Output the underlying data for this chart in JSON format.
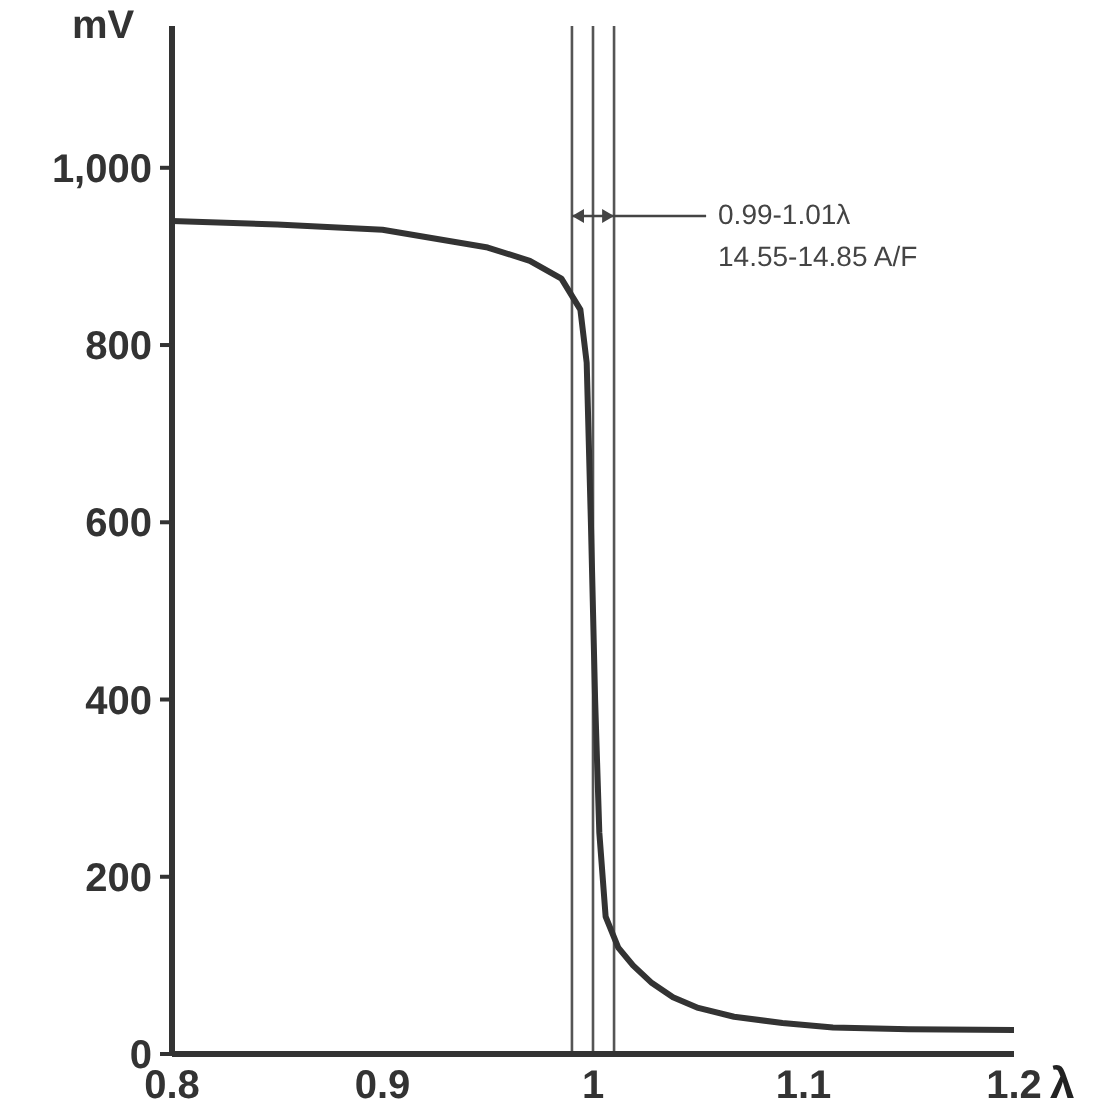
{
  "chart_data": {
    "type": "line",
    "xlabel": "λ",
    "ylabel": "mV",
    "x": [
      0.8,
      0.85,
      0.9,
      0.95,
      0.97,
      0.985,
      0.994,
      0.997,
      0.999,
      1.001,
      1.003,
      1.006,
      1.012,
      1.019,
      1.028,
      1.038,
      1.05,
      1.067,
      1.09,
      1.114,
      1.15,
      1.2
    ],
    "series": [
      {
        "color": "#333333",
        "values": [
          940,
          936,
          930,
          910,
          895,
          875,
          840,
          780,
          600,
          400,
          250,
          155,
          120,
          100,
          80,
          64,
          52,
          42,
          35,
          30,
          28,
          27
        ]
      }
    ],
    "xlim": [
      0.8,
      1.2
    ],
    "xticks": [
      0.8,
      0.9,
      1,
      1.1,
      1.2
    ],
    "ylim": [
      0,
      1160
    ],
    "yticks": [
      0,
      200,
      400,
      600,
      800,
      {
        "value": 1000,
        "label": "1,000"
      }
    ],
    "ref_lines": [
      {
        "axis": "x",
        "value": 0.99,
        "color": "#555555"
      },
      {
        "axis": "x",
        "value": 1,
        "color": "#555555"
      },
      {
        "axis": "x",
        "value": 1.01,
        "color": "#555555"
      }
    ],
    "annotations": [
      {
        "text": "0.99-1.01λ\n14.55-14.85 A/F",
        "x": 0.99,
        "y": 945
      }
    ],
    "grid": false,
    "legend": false,
    "marker": "none",
    "line_style": "solid"
  }
}
